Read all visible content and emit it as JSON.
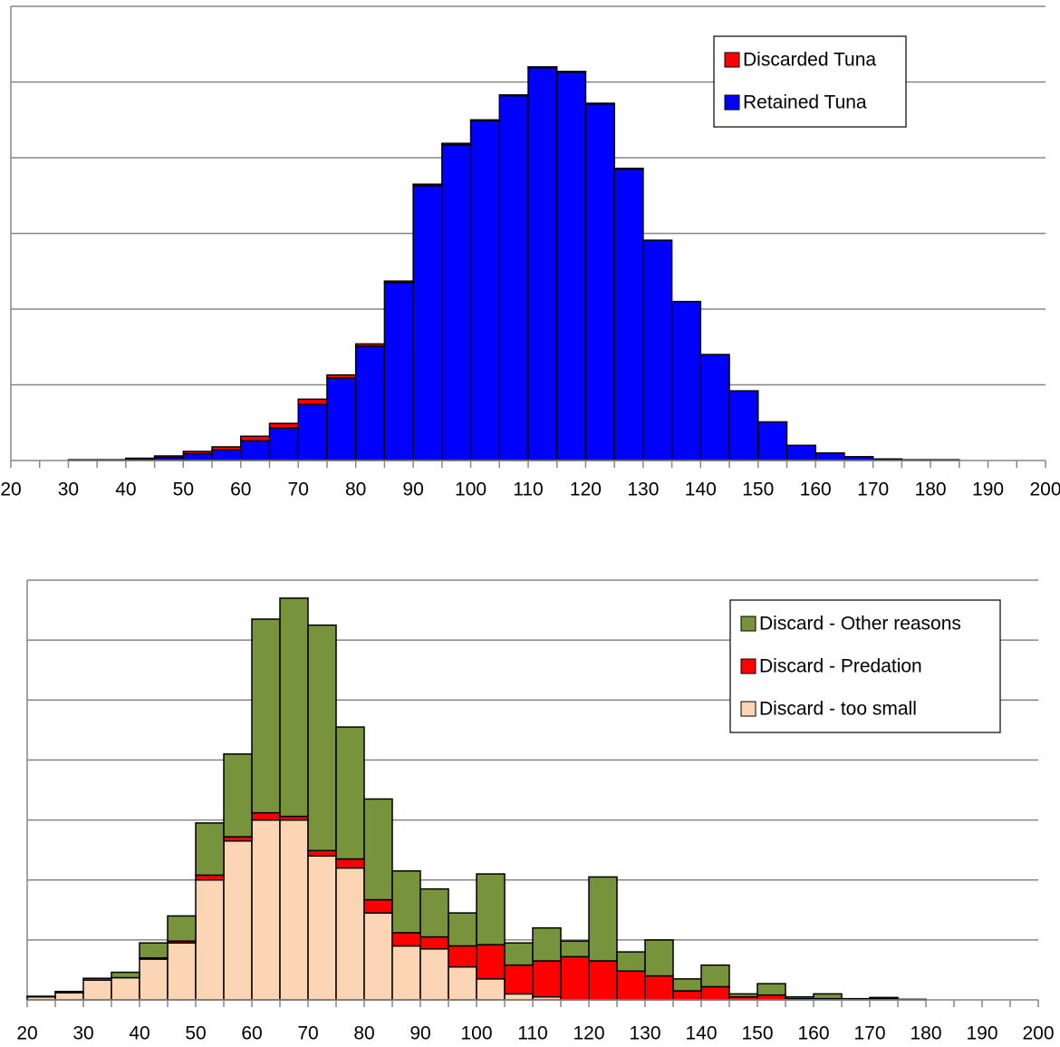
{
  "chart_data": [
    {
      "type": "histogram",
      "stacked": true,
      "bins": [
        20,
        25,
        30,
        35,
        40,
        45,
        50,
        55,
        60,
        65,
        70,
        75,
        80,
        85,
        90,
        95,
        100,
        105,
        110,
        115,
        120,
        125,
        130,
        135,
        140,
        145,
        150,
        155,
        160,
        165,
        170,
        175,
        180,
        185,
        190,
        195,
        200
      ],
      "series": [
        {
          "name": "Retained Tuna",
          "color": "#0000ff",
          "values": [
            0,
            0,
            0.01,
            0.01,
            0.02,
            0.04,
            0.09,
            0.14,
            0.26,
            0.43,
            0.74,
            1.09,
            1.51,
            2.35,
            3.63,
            4.17,
            4.49,
            4.82,
            5.19,
            5.13,
            4.71,
            3.85,
            2.91,
            2.1,
            1.4,
            0.92,
            0.51,
            0.2,
            0.1,
            0.05,
            0.02,
            0.01,
            0.01,
            0,
            0,
            0
          ]
        },
        {
          "name": "Discarded Tuna",
          "color": "#ff0000",
          "values": [
            0,
            0,
            0,
            0,
            0.01,
            0.02,
            0.03,
            0.04,
            0.06,
            0.06,
            0.07,
            0.04,
            0.03,
            0.02,
            0.02,
            0.02,
            0.01,
            0.01,
            0.01,
            0.01,
            0.01,
            0.01,
            0,
            0,
            0,
            0,
            0,
            0,
            0,
            0,
            0,
            0,
            0,
            0,
            0,
            0
          ]
        }
      ],
      "xlim": [
        20,
        200
      ],
      "xticks": [
        20,
        30,
        40,
        50,
        60,
        70,
        80,
        90,
        100,
        110,
        120,
        130,
        140,
        150,
        160,
        170,
        180,
        190,
        200
      ],
      "ylim": [
        0,
        6
      ],
      "ygrid": [
        1,
        2,
        3,
        4,
        5,
        6
      ],
      "grid": true,
      "legend": "upper right"
    },
    {
      "type": "histogram",
      "stacked": true,
      "bins": [
        20,
        25,
        30,
        35,
        40,
        45,
        50,
        55,
        60,
        65,
        70,
        75,
        80,
        85,
        90,
        95,
        100,
        105,
        110,
        115,
        120,
        125,
        130,
        135,
        140,
        145,
        150,
        155,
        160,
        165,
        170,
        175,
        180,
        185,
        190,
        195,
        200
      ],
      "series": [
        {
          "name": "Discard - too small",
          "color": "#fcd5b5",
          "values": [
            0.05,
            0.12,
            0.33,
            0.37,
            0.68,
            0.95,
            2.0,
            2.65,
            3.0,
            3.0,
            2.4,
            2.2,
            1.45,
            0.9,
            0.85,
            0.55,
            0.35,
            0.1,
            0.05,
            0,
            0,
            0,
            0,
            0,
            0,
            0,
            0,
            0,
            0,
            0,
            0,
            0,
            0,
            0,
            0,
            0
          ]
        },
        {
          "name": "Discard - Predation",
          "color": "#ff0000",
          "values": [
            0,
            0,
            0,
            0,
            0.02,
            0.03,
            0.08,
            0.07,
            0.12,
            0.06,
            0.09,
            0.15,
            0.22,
            0.22,
            0.2,
            0.35,
            0.57,
            0.48,
            0.6,
            0.72,
            0.65,
            0.48,
            0.4,
            0.15,
            0.22,
            0.05,
            0.08,
            0.02,
            0.02,
            0,
            0.02,
            0,
            0,
            0,
            0,
            0
          ]
        },
        {
          "name": "Discard - Other reasons",
          "color": "#77933c",
          "values": [
            0.01,
            0.02,
            0.03,
            0.09,
            0.25,
            0.42,
            0.87,
            1.38,
            3.23,
            3.64,
            3.76,
            2.2,
            1.68,
            1.03,
            0.8,
            0.55,
            1.18,
            0.37,
            0.55,
            0.26,
            1.4,
            0.32,
            0.6,
            0.2,
            0.36,
            0.05,
            0.19,
            0.03,
            0.08,
            0.02,
            0.02,
            0.01,
            0,
            0,
            0,
            0
          ]
        }
      ],
      "xlim": [
        20,
        200
      ],
      "xticks": [
        20,
        30,
        40,
        50,
        60,
        70,
        80,
        90,
        100,
        110,
        120,
        130,
        140,
        150,
        160,
        170,
        180,
        190,
        200
      ],
      "ylim": [
        0,
        7
      ],
      "ygrid": [
        1,
        2,
        3,
        4,
        5,
        6,
        7
      ],
      "grid": true,
      "legend": "upper right"
    }
  ]
}
